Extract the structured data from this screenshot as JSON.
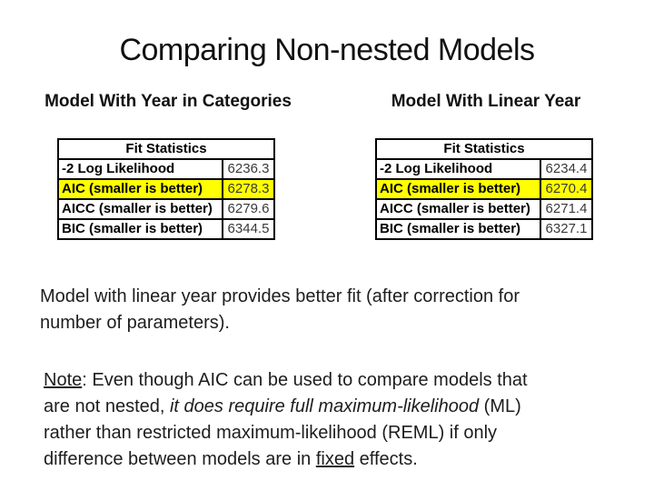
{
  "slide": {
    "title": "Comparing Non-nested Models"
  },
  "colors": {
    "highlight": "#ffff00",
    "table_border": "#000000",
    "background": "#ffffff"
  },
  "tables": [
    {
      "heading": "Model With Year in Categories",
      "header": "Fit Statistics",
      "rows": [
        {
          "label": "-2 Log Likelihood",
          "value": "6236.3",
          "bg": "#ffffff"
        },
        {
          "label": "AIC (smaller is better)",
          "value": "6278.3",
          "bg": "#ffff00"
        },
        {
          "label": "AICC (smaller is better)",
          "value": "6279.6",
          "bg": "#ffffff"
        },
        {
          "label": "BIC (smaller is better)",
          "value": "6344.5",
          "bg": "#ffffff"
        }
      ]
    },
    {
      "heading": "Model With Linear Year",
      "header": "Fit Statistics",
      "rows": [
        {
          "label": "-2 Log Likelihood",
          "value": "6234.4",
          "bg": "#ffffff"
        },
        {
          "label": "AIC (smaller is better)",
          "value": "6270.4",
          "bg": "#ffff00"
        },
        {
          "label": "AICC (smaller is better)",
          "value": "6271.4",
          "bg": "#ffffff"
        },
        {
          "label": "BIC (smaller is better)",
          "value": "6327.1",
          "bg": "#ffffff"
        }
      ]
    }
  ],
  "body": {
    "conclusion_lines": [
      [
        {
          "t": "Model with linear year provides better fit (after correction for",
          "s": "p"
        }
      ],
      [
        {
          "t": "number of parameters).",
          "s": "p"
        }
      ]
    ],
    "note_lines": [
      [
        {
          "t": "Note",
          "s": "u"
        },
        {
          "t": ": Even though AIC can be used to compare models that",
          "s": "p"
        }
      ],
      [
        {
          "t": "are not nested, ",
          "s": "p"
        },
        {
          "t": "it does require full maximum-likelihood",
          "s": "i"
        },
        {
          "t": " (ML)",
          "s": "p"
        }
      ],
      [
        {
          "t": "rather than restricted maximum-likelihood (REML) if only",
          "s": "p"
        }
      ],
      [
        {
          "t": "difference between models are in ",
          "s": "p"
        },
        {
          "t": "fixed",
          "s": "u"
        },
        {
          "t": " effects.",
          "s": "p"
        }
      ]
    ]
  }
}
